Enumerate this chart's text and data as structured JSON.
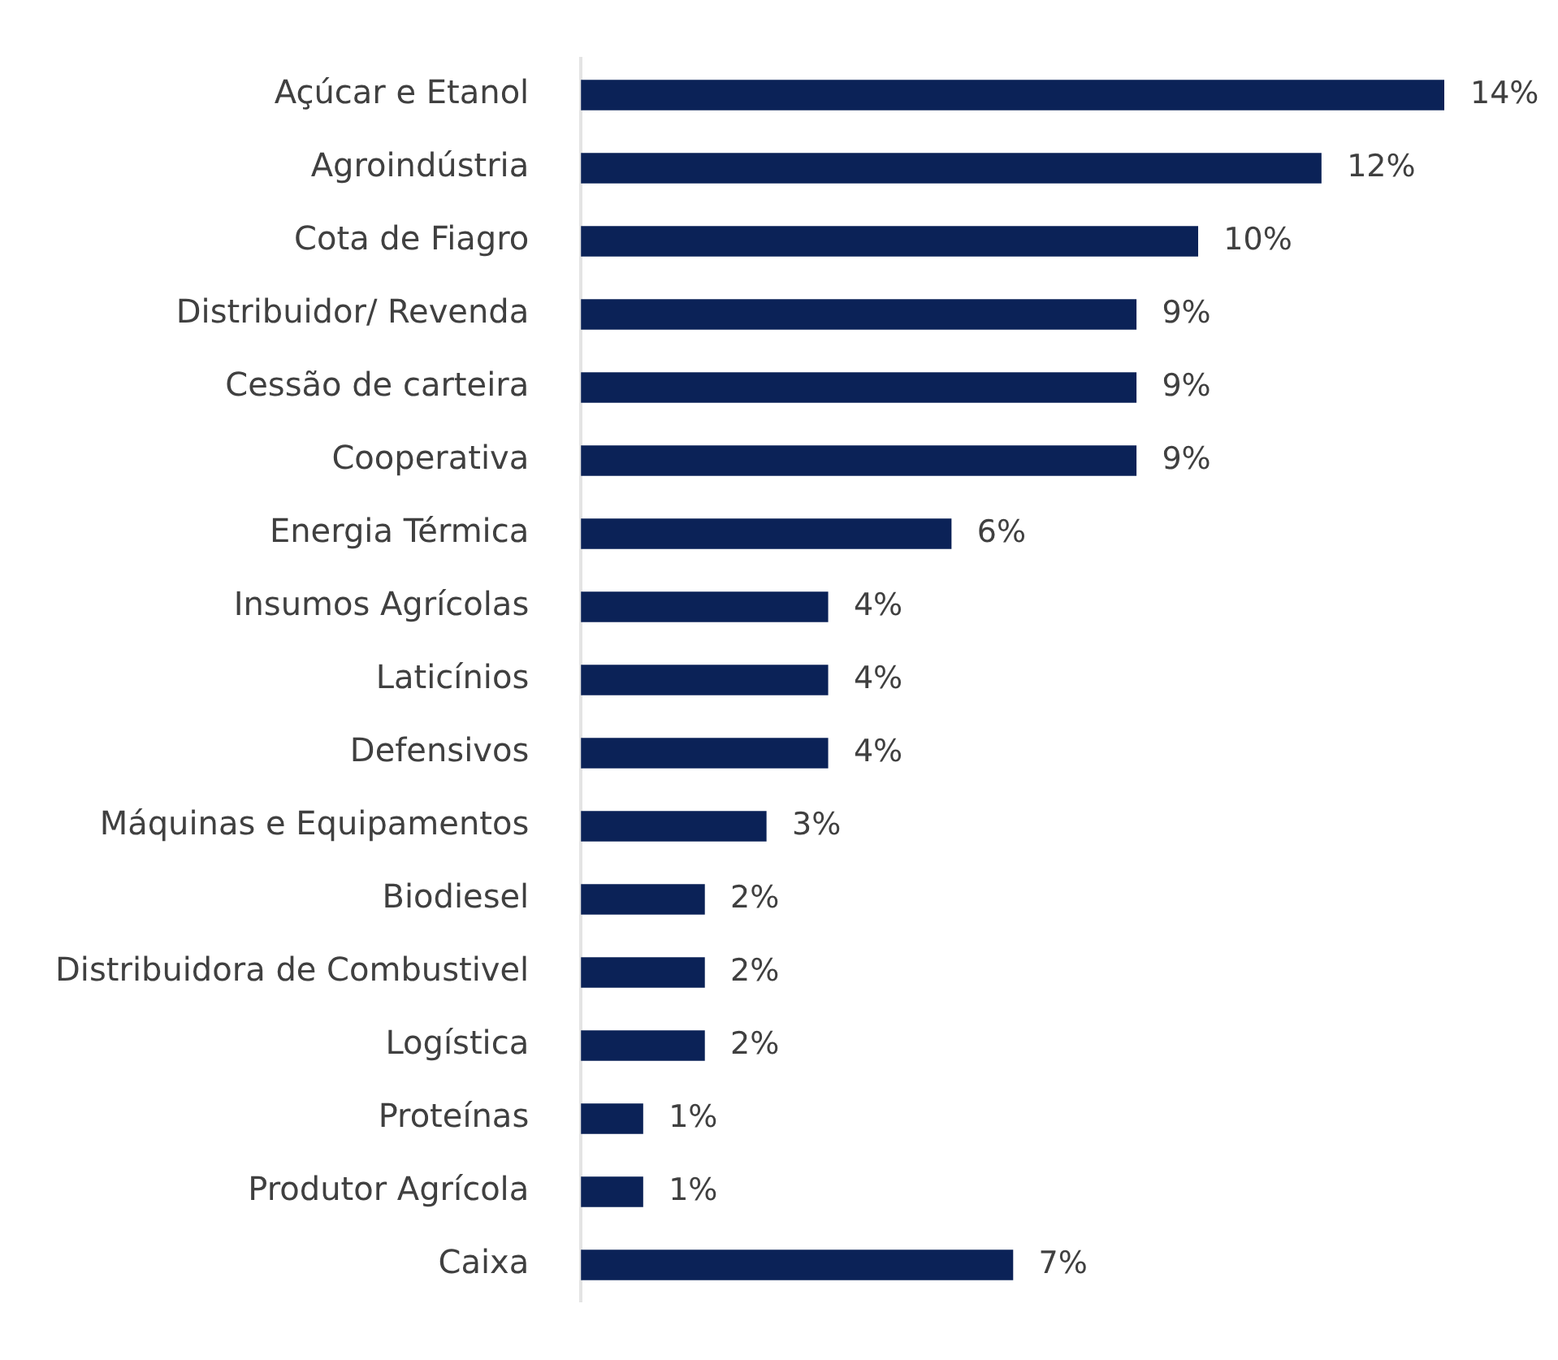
{
  "chart_data": {
    "type": "bar",
    "orientation": "horizontal",
    "categories": [
      "Açúcar e Etanol",
      "Agroindústria",
      "Cota de Fiagro",
      "Distribuidor/ Revenda",
      "Cessão de carteira",
      "Cooperativa",
      "Energia Térmica",
      "Insumos Agrícolas",
      "Laticínios",
      "Defensivos",
      "Máquinas e Equipamentos",
      "Biodiesel",
      "Distribuidora de Combustivel",
      "Logística",
      "Proteínas",
      "Produtor Agrícola",
      "Caixa"
    ],
    "values": [
      14,
      12,
      10,
      9,
      9,
      9,
      6,
      4,
      4,
      4,
      3,
      2,
      2,
      2,
      1,
      1,
      7
    ],
    "value_labels": [
      "14%",
      "12%",
      "10%",
      "9%",
      "9%",
      "9%",
      "6%",
      "4%",
      "4%",
      "4%",
      "3%",
      "2%",
      "2%",
      "2%",
      "1%",
      "1%",
      "7%"
    ],
    "color": "#0b2257",
    "legend": false
  }
}
